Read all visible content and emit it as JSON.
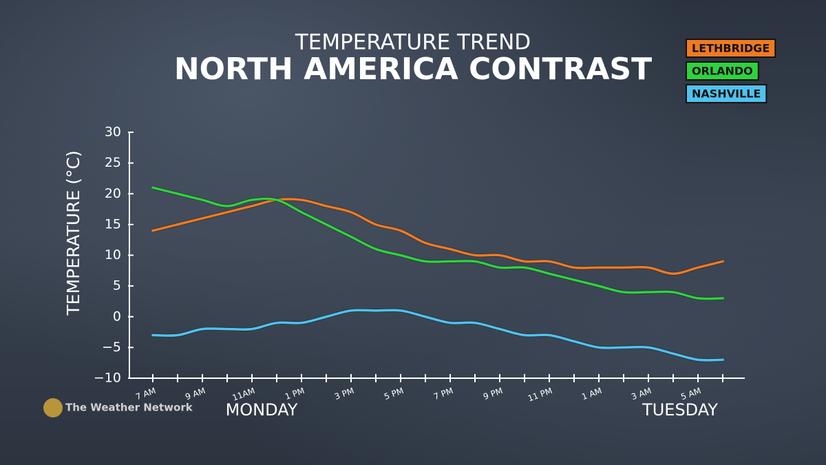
{
  "chart_data": {
    "type": "line",
    "title": "TEMPERATURE TREND",
    "subtitle": "NORTH AMERICA CONTRAST",
    "y_label": "TEMPERATURE (°C)",
    "annotations": [
      "MONDAY",
      "TUESDAY"
    ],
    "source": "The Weather Network",
    "categories": [
      "7 AM",
      null,
      "9 AM",
      null,
      "11AM",
      null,
      "1 PM",
      null,
      "3 PM",
      null,
      "5 PM",
      null,
      "7 PM",
      null,
      "9 PM",
      null,
      "11 PM",
      null,
      "1 AM",
      null,
      "3 AM",
      null,
      "5 AM",
      null
    ],
    "series": [
      {
        "name": "LETHBRIDGE",
        "color": "#f07a22",
        "values": [
          14,
          15,
          16,
          17,
          18,
          19,
          19,
          18,
          17,
          15,
          14,
          12,
          11,
          10,
          10,
          9,
          9,
          8,
          8,
          8,
          8,
          7,
          8,
          9
        ]
      },
      {
        "name": "ORLANDO",
        "color": "#2fd23e",
        "values": [
          21,
          20,
          19,
          18,
          19,
          19,
          17,
          15,
          13,
          11,
          10,
          9,
          9,
          9,
          8,
          8,
          7,
          6,
          5,
          4,
          4,
          4,
          3,
          3
        ]
      },
      {
        "name": "NASHVILLE",
        "color": "#4fc3ef",
        "values": [
          -3,
          -3,
          -2,
          -2,
          -2,
          -1,
          -1,
          0,
          1,
          1,
          1,
          0,
          -1,
          -1,
          -2,
          -3,
          -3,
          -4,
          -5,
          -5,
          -5,
          -6,
          -7,
          -7
        ]
      }
    ],
    "ylim": [
      -10,
      30
    ],
    "yticks": [
      {
        "value": -10,
        "label": "−10"
      },
      {
        "value": -5,
        "label": "−5"
      },
      0,
      5,
      10,
      15,
      20,
      25,
      30
    ],
    "legend": "top-right"
  }
}
